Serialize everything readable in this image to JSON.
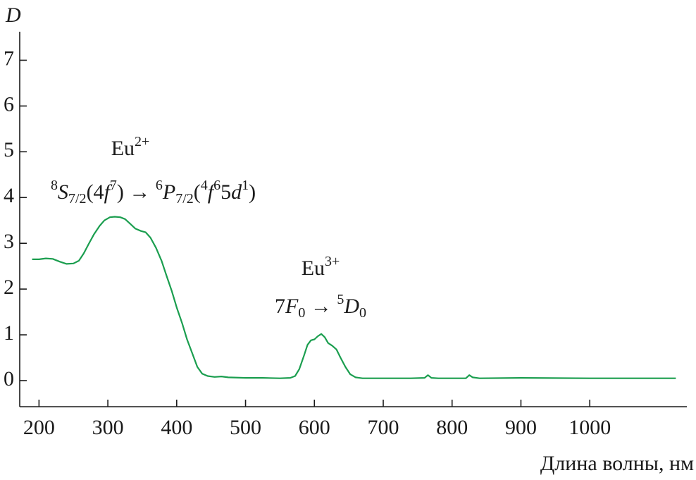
{
  "chart_data": {
    "type": "line",
    "ylabel": "D",
    "xlabel": "Длина волны, нм",
    "color": "#1b9e4f",
    "xlim": [
      172,
      1141
    ],
    "ylim": [
      -0.57,
      7.7
    ],
    "xticks": [
      200,
      300,
      400,
      500,
      600,
      700,
      800,
      900,
      1000
    ],
    "yticks": [
      0,
      1,
      2,
      3,
      4,
      5,
      6,
      7
    ],
    "x": [
      190,
      200,
      210,
      220,
      230,
      240,
      250,
      258,
      265,
      272,
      280,
      288,
      295,
      303,
      310,
      318,
      325,
      333,
      340,
      348,
      355,
      362,
      370,
      378,
      385,
      393,
      400,
      408,
      415,
      423,
      430,
      437,
      445,
      455,
      465,
      475,
      500,
      525,
      550,
      565,
      572,
      578,
      585,
      590,
      595,
      600,
      605,
      610,
      615,
      620,
      626,
      632,
      638,
      645,
      652,
      660,
      670,
      700,
      740,
      760,
      765,
      770,
      780,
      820,
      825,
      830,
      840,
      900,
      1000,
      1125
    ],
    "values": [
      2.65,
      2.65,
      2.67,
      2.66,
      2.6,
      2.55,
      2.56,
      2.62,
      2.78,
      2.98,
      3.2,
      3.38,
      3.5,
      3.57,
      3.58,
      3.57,
      3.53,
      3.42,
      3.32,
      3.27,
      3.24,
      3.12,
      2.9,
      2.62,
      2.3,
      1.95,
      1.6,
      1.25,
      0.9,
      0.58,
      0.3,
      0.15,
      0.1,
      0.08,
      0.09,
      0.07,
      0.06,
      0.06,
      0.05,
      0.06,
      0.1,
      0.25,
      0.55,
      0.78,
      0.88,
      0.9,
      0.97,
      1.02,
      0.95,
      0.82,
      0.76,
      0.68,
      0.5,
      0.3,
      0.14,
      0.07,
      0.05,
      0.05,
      0.05,
      0.06,
      0.12,
      0.06,
      0.05,
      0.05,
      0.12,
      0.07,
      0.05,
      0.06,
      0.05,
      0.05
    ],
    "annotations": [
      {
        "parts": [
          [
            "Eu",
            "n"
          ],
          [
            "2+",
            "sup"
          ]
        ]
      },
      {
        "parts": [
          [
            "8",
            "sup"
          ],
          [
            "S",
            "i"
          ],
          [
            "7/2",
            "sub"
          ],
          [
            "(4",
            "n"
          ],
          [
            "f",
            "i"
          ],
          [
            "7",
            "sup"
          ],
          [
            ") → ",
            "n"
          ],
          [
            "6",
            "sup"
          ],
          [
            "P",
            "i"
          ],
          [
            "7/2",
            "sub"
          ],
          [
            "(",
            "n"
          ],
          [
            "4",
            "sup"
          ],
          [
            "f",
            "i"
          ],
          [
            "6",
            "sup"
          ],
          [
            "5",
            "n"
          ],
          [
            "d",
            "i"
          ],
          [
            "1",
            "sup"
          ],
          [
            ")",
            "n"
          ]
        ]
      },
      {
        "parts": [
          [
            "Eu",
            "n"
          ],
          [
            "3+",
            "sup"
          ]
        ]
      },
      {
        "parts": [
          [
            "7",
            "n"
          ],
          [
            "F",
            "i"
          ],
          [
            "0",
            "sub"
          ],
          [
            " → ",
            "n"
          ],
          [
            "5",
            "sup"
          ],
          [
            "D",
            "i"
          ],
          [
            "0",
            "sub"
          ]
        ]
      }
    ]
  }
}
